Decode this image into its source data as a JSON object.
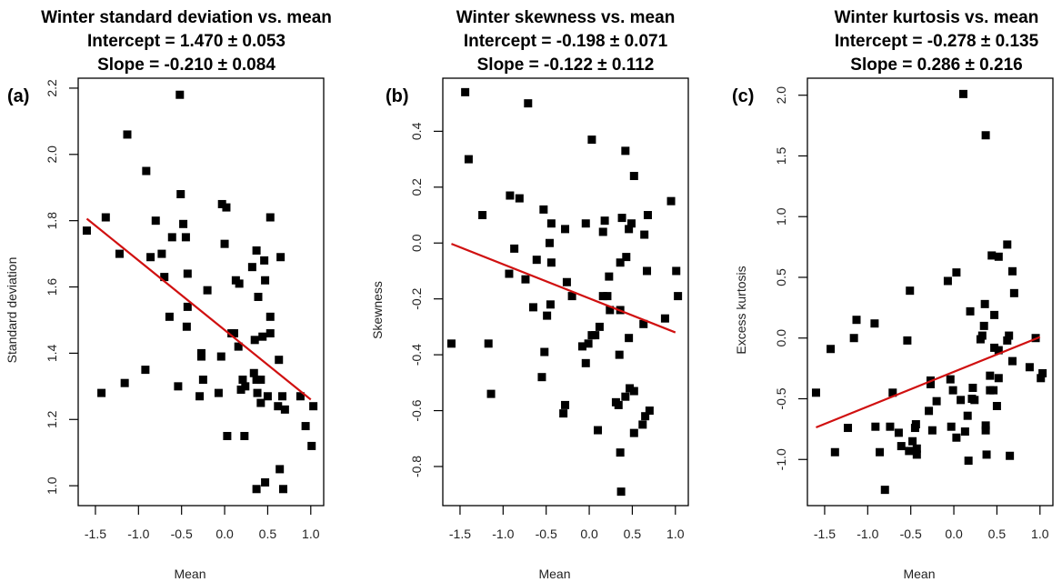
{
  "chart_data": [
    {
      "type": "scatter",
      "panel_label": "(a)",
      "title": "Winter standard deviation vs. mean",
      "subtitle_lines": [
        "Intercept =  1.470 ± 0.053",
        "Slope =  -0.210 ± 0.084"
      ],
      "xlabel": "Mean",
      "ylabel": "Standard deviation",
      "xlim": [
        -1.7,
        1.15
      ],
      "ylim": [
        0.94,
        2.23
      ],
      "xticks": [
        -1.5,
        -1.0,
        -0.5,
        0.0,
        0.5,
        1.0
      ],
      "xtick_labels": [
        "-1.5",
        "-1.0",
        "-0.5",
        "0.0",
        "0.5",
        "1.0"
      ],
      "yticks": [
        1.0,
        1.2,
        1.4,
        1.6,
        1.8,
        2.0,
        2.2
      ],
      "ytick_labels": [
        "1.0",
        "1.2",
        "1.4",
        "1.6",
        "1.8",
        "2.0",
        "2.2"
      ],
      "fit": {
        "intercept": 1.47,
        "slope": -0.21,
        "x_range": [
          -1.6,
          1.0
        ],
        "color": "#d01010"
      },
      "points": [
        [
          -1.6,
          1.77
        ],
        [
          -1.38,
          1.81
        ],
        [
          -1.13,
          2.06
        ],
        [
          -1.22,
          1.7
        ],
        [
          -0.91,
          1.95
        ],
        [
          -0.52,
          2.18
        ],
        [
          -0.51,
          1.88
        ],
        [
          -0.8,
          1.8
        ],
        [
          -0.86,
          1.69
        ],
        [
          -0.73,
          1.7
        ],
        [
          -0.61,
          1.75
        ],
        [
          -0.48,
          1.79
        ],
        [
          -0.45,
          1.75
        ],
        [
          -0.7,
          1.63
        ],
        [
          -0.43,
          1.64
        ],
        [
          -0.2,
          1.59
        ],
        [
          -0.03,
          1.85
        ],
        [
          0.02,
          1.84
        ],
        [
          0.0,
          1.73
        ],
        [
          0.53,
          1.81
        ],
        [
          0.37,
          1.71
        ],
        [
          0.65,
          1.69
        ],
        [
          0.32,
          1.66
        ],
        [
          0.46,
          1.68
        ],
        [
          0.13,
          1.62
        ],
        [
          0.17,
          1.61
        ],
        [
          0.47,
          1.62
        ],
        [
          0.39,
          1.57
        ],
        [
          -0.64,
          1.51
        ],
        [
          -0.43,
          1.54
        ],
        [
          -0.44,
          1.48
        ],
        [
          0.53,
          1.51
        ],
        [
          0.53,
          1.46
        ],
        [
          0.08,
          1.46
        ],
        [
          0.11,
          1.46
        ],
        [
          0.16,
          1.42
        ],
        [
          0.35,
          1.44
        ],
        [
          0.44,
          1.45
        ],
        [
          0.63,
          1.38
        ],
        [
          -0.27,
          1.4
        ],
        [
          -0.27,
          1.39
        ],
        [
          -0.04,
          1.39
        ],
        [
          -0.92,
          1.35
        ],
        [
          -1.16,
          1.31
        ],
        [
          -1.43,
          1.28
        ],
        [
          -0.54,
          1.3
        ],
        [
          -0.25,
          1.32
        ],
        [
          -0.29,
          1.27
        ],
        [
          -0.07,
          1.28
        ],
        [
          0.34,
          1.34
        ],
        [
          0.21,
          1.32
        ],
        [
          0.37,
          1.32
        ],
        [
          0.42,
          1.32
        ],
        [
          0.19,
          1.29
        ],
        [
          0.24,
          1.3
        ],
        [
          0.38,
          1.28
        ],
        [
          0.5,
          1.27
        ],
        [
          0.42,
          1.25
        ],
        [
          0.67,
          1.27
        ],
        [
          0.88,
          1.27
        ],
        [
          0.62,
          1.24
        ],
        [
          0.7,
          1.23
        ],
        [
          1.03,
          1.24
        ],
        [
          0.94,
          1.18
        ],
        [
          1.01,
          1.12
        ],
        [
          0.03,
          1.15
        ],
        [
          0.23,
          1.15
        ],
        [
          0.64,
          1.05
        ],
        [
          0.47,
          1.01
        ],
        [
          0.37,
          0.99
        ],
        [
          0.68,
          0.99
        ]
      ]
    },
    {
      "type": "scatter",
      "panel_label": "(b)",
      "title": "Winter skewness vs. mean",
      "subtitle_lines": [
        "Intercept =  -0.198 ± 0.071",
        "Slope =  -0.122 ± 0.112"
      ],
      "xlabel": "Mean",
      "ylabel": "Skewness",
      "xlim": [
        -1.7,
        1.15
      ],
      "ylim": [
        -0.94,
        0.59
      ],
      "xticks": [
        -1.5,
        -1.0,
        -0.5,
        0.0,
        0.5,
        1.0
      ],
      "xtick_labels": [
        "-1.5",
        "-1.0",
        "-0.5",
        "0.0",
        "0.5",
        "1.0"
      ],
      "yticks": [
        -0.8,
        -0.6,
        -0.4,
        -0.2,
        0.0,
        0.2,
        0.4
      ],
      "ytick_labels": [
        "-0.8",
        "-0.6",
        "-0.4",
        "-0.2",
        "0.0",
        "0.2",
        "0.4"
      ],
      "fit": {
        "intercept": -0.198,
        "slope": -0.122,
        "x_range": [
          -1.6,
          1.0
        ],
        "color": "#d01010"
      },
      "points": [
        [
          -1.44,
          0.54
        ],
        [
          -1.4,
          0.3
        ],
        [
          -0.71,
          0.5
        ],
        [
          -1.24,
          0.1
        ],
        [
          -0.92,
          0.17
        ],
        [
          -0.81,
          0.16
        ],
        [
          -0.87,
          -0.02
        ],
        [
          -0.93,
          -0.11
        ],
        [
          -0.74,
          -0.13
        ],
        [
          -0.61,
          -0.06
        ],
        [
          -0.53,
          0.12
        ],
        [
          -0.44,
          0.07
        ],
        [
          -0.46,
          0.0
        ],
        [
          -0.44,
          -0.07
        ],
        [
          -0.65,
          -0.23
        ],
        [
          -0.49,
          -0.26
        ],
        [
          -0.45,
          -0.22
        ],
        [
          -0.28,
          0.05
        ],
        [
          -0.26,
          -0.14
        ],
        [
          -0.2,
          -0.19
        ],
        [
          -0.04,
          0.07
        ],
        [
          0.03,
          0.37
        ],
        [
          0.18,
          0.08
        ],
        [
          0.16,
          0.04
        ],
        [
          0.16,
          -0.19
        ],
        [
          0.21,
          -0.19
        ],
        [
          0.23,
          -0.12
        ],
        [
          0.12,
          -0.3
        ],
        [
          0.24,
          -0.24
        ],
        [
          0.36,
          -0.07
        ],
        [
          0.43,
          -0.05
        ],
        [
          0.38,
          0.09
        ],
        [
          0.46,
          0.05
        ],
        [
          0.49,
          0.07
        ],
        [
          0.42,
          0.33
        ],
        [
          0.52,
          0.24
        ],
        [
          0.68,
          0.1
        ],
        [
          0.64,
          0.03
        ],
        [
          0.67,
          -0.1
        ],
        [
          0.36,
          -0.24
        ],
        [
          0.63,
          -0.29
        ],
        [
          0.95,
          0.15
        ],
        [
          1.01,
          -0.1
        ],
        [
          1.03,
          -0.19
        ],
        [
          0.88,
          -0.27
        ],
        [
          -1.6,
          -0.36
        ],
        [
          -1.17,
          -0.36
        ],
        [
          -1.14,
          -0.54
        ],
        [
          -0.52,
          -0.39
        ],
        [
          -0.55,
          -0.48
        ],
        [
          -0.3,
          -0.61
        ],
        [
          -0.28,
          -0.58
        ],
        [
          -0.08,
          -0.37
        ],
        [
          -0.01,
          -0.36
        ],
        [
          0.03,
          -0.33
        ],
        [
          0.07,
          -0.33
        ],
        [
          -0.04,
          -0.43
        ],
        [
          0.1,
          -0.67
        ],
        [
          0.35,
          -0.4
        ],
        [
          0.46,
          -0.34
        ],
        [
          0.47,
          -0.52
        ],
        [
          0.52,
          -0.53
        ],
        [
          0.42,
          -0.55
        ],
        [
          0.31,
          -0.57
        ],
        [
          0.34,
          -0.58
        ],
        [
          0.7,
          -0.6
        ],
        [
          0.65,
          -0.62
        ],
        [
          0.62,
          -0.65
        ],
        [
          0.52,
          -0.68
        ],
        [
          0.36,
          -0.75
        ],
        [
          0.37,
          -0.89
        ]
      ]
    },
    {
      "type": "scatter",
      "panel_label": "(c)",
      "title": "Winter kurtosis vs. mean",
      "subtitle_lines": [
        "Intercept =  -0.278 ± 0.135",
        "Slope =  0.286 ± 0.216"
      ],
      "xlabel": "Mean",
      "ylabel": "Excess kurtosis",
      "xlim": [
        -1.7,
        1.15
      ],
      "ylim": [
        -1.38,
        2.14
      ],
      "xticks": [
        -1.5,
        -1.0,
        -0.5,
        0.0,
        0.5,
        1.0
      ],
      "xtick_labels": [
        "-1.5",
        "-1.0",
        "-0.5",
        "0.0",
        "0.5",
        "1.0"
      ],
      "yticks": [
        -1.0,
        -0.5,
        0.0,
        0.5,
        1.0,
        1.5,
        2.0
      ],
      "ytick_labels": [
        "-1.0",
        "-0.5",
        "0.0",
        "0.5",
        "1.0",
        "1.5",
        "2.0"
      ],
      "fit": {
        "intercept": -0.278,
        "slope": 0.286,
        "x_range": [
          -1.6,
          1.0
        ],
        "color": "#d01010"
      },
      "points": [
        [
          0.11,
          2.01
        ],
        [
          0.37,
          1.67
        ],
        [
          0.62,
          0.77
        ],
        [
          0.44,
          0.68
        ],
        [
          0.52,
          0.67
        ],
        [
          0.68,
          0.55
        ],
        [
          0.7,
          0.37
        ],
        [
          0.03,
          0.54
        ],
        [
          -0.07,
          0.47
        ],
        [
          -0.51,
          0.39
        ],
        [
          0.19,
          0.22
        ],
        [
          0.36,
          0.28
        ],
        [
          0.47,
          0.19
        ],
        [
          0.35,
          0.1
        ],
        [
          -1.13,
          0.15
        ],
        [
          -0.92,
          0.12
        ],
        [
          -1.16,
          0.0
        ],
        [
          -1.43,
          -0.09
        ],
        [
          -0.54,
          -0.02
        ],
        [
          -1.6,
          -0.45
        ],
        [
          -0.71,
          -0.45
        ],
        [
          -1.23,
          -0.74
        ],
        [
          -0.91,
          -0.73
        ],
        [
          -0.74,
          -0.73
        ],
        [
          -1.38,
          -0.94
        ],
        [
          -0.86,
          -0.94
        ],
        [
          -0.8,
          -1.25
        ],
        [
          -0.64,
          -0.78
        ],
        [
          -0.61,
          -0.89
        ],
        [
          -0.52,
          -0.93
        ],
        [
          -0.48,
          -0.85
        ],
        [
          -0.45,
          -0.74
        ],
        [
          -0.44,
          -0.71
        ],
        [
          -0.43,
          -0.91
        ],
        [
          -0.43,
          -0.96
        ],
        [
          -0.29,
          -0.6
        ],
        [
          -0.27,
          -0.35
        ],
        [
          -0.27,
          -0.38
        ],
        [
          -0.25,
          -0.76
        ],
        [
          -0.2,
          -0.52
        ],
        [
          -0.04,
          -0.34
        ],
        [
          -0.01,
          -0.43
        ],
        [
          -0.03,
          -0.73
        ],
        [
          0.03,
          -0.82
        ],
        [
          0.08,
          -0.51
        ],
        [
          0.13,
          -0.77
        ],
        [
          0.16,
          -0.64
        ],
        [
          0.17,
          -1.01
        ],
        [
          0.21,
          -0.5
        ],
        [
          0.24,
          -0.51
        ],
        [
          0.22,
          -0.41
        ],
        [
          0.31,
          -0.01
        ],
        [
          0.33,
          0.02
        ],
        [
          0.37,
          -0.72
        ],
        [
          0.37,
          -0.76
        ],
        [
          0.38,
          -0.96
        ],
        [
          0.42,
          -0.31
        ],
        [
          0.42,
          -0.43
        ],
        [
          0.46,
          -0.43
        ],
        [
          0.47,
          -0.08
        ],
        [
          0.52,
          -0.1
        ],
        [
          0.52,
          -0.33
        ],
        [
          0.5,
          -0.56
        ],
        [
          0.62,
          -0.02
        ],
        [
          0.64,
          0.02
        ],
        [
          0.68,
          -0.19
        ],
        [
          0.65,
          -0.97
        ],
        [
          0.88,
          -0.24
        ],
        [
          0.95,
          0.0
        ],
        [
          1.01,
          -0.33
        ],
        [
          1.03,
          -0.29
        ]
      ]
    }
  ]
}
